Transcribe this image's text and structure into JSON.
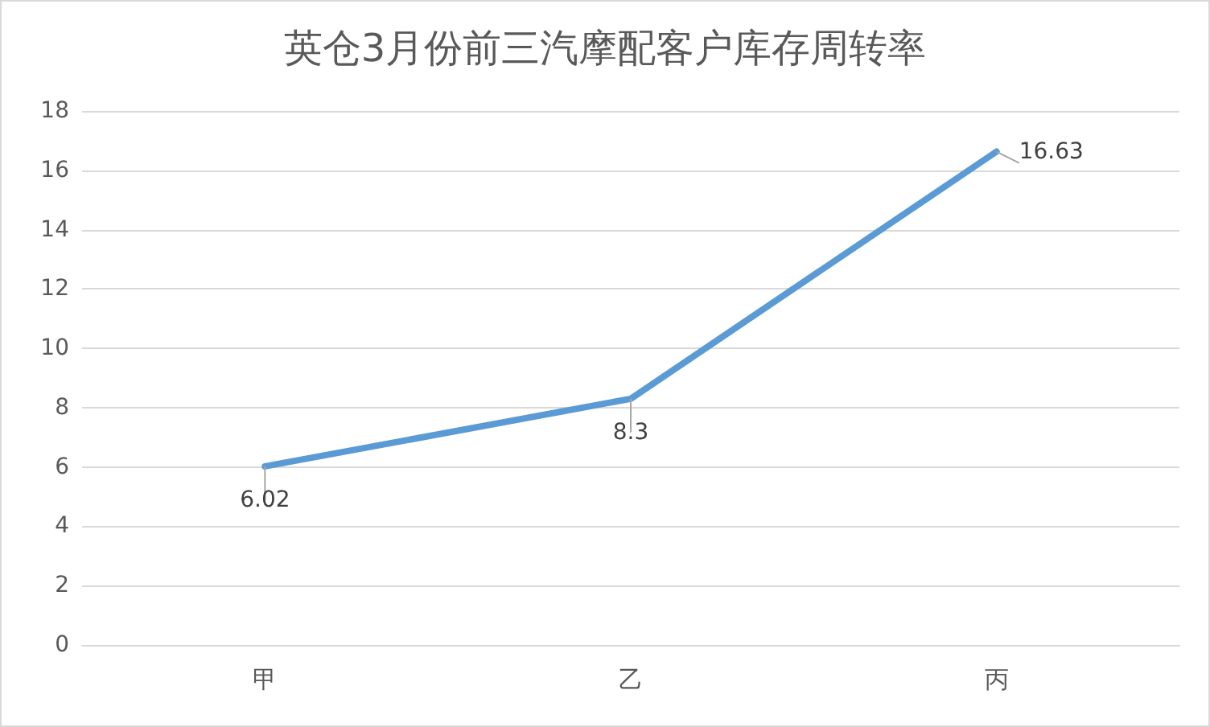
{
  "chart_data": {
    "type": "line",
    "title": "英仓3月份前三汽摩配客户库存周转率",
    "categories": [
      "甲",
      "乙",
      "丙"
    ],
    "series": [
      {
        "color": "#5b9bd5",
        "values": [
          6.02,
          8.3,
          16.63
        ]
      }
    ],
    "ylim": [
      0,
      18
    ],
    "yticks": [
      0,
      2,
      4,
      6,
      8,
      10,
      12,
      14,
      16,
      18
    ],
    "grid": "y",
    "data_labels": true,
    "marker": "none",
    "line_style": "solid"
  }
}
